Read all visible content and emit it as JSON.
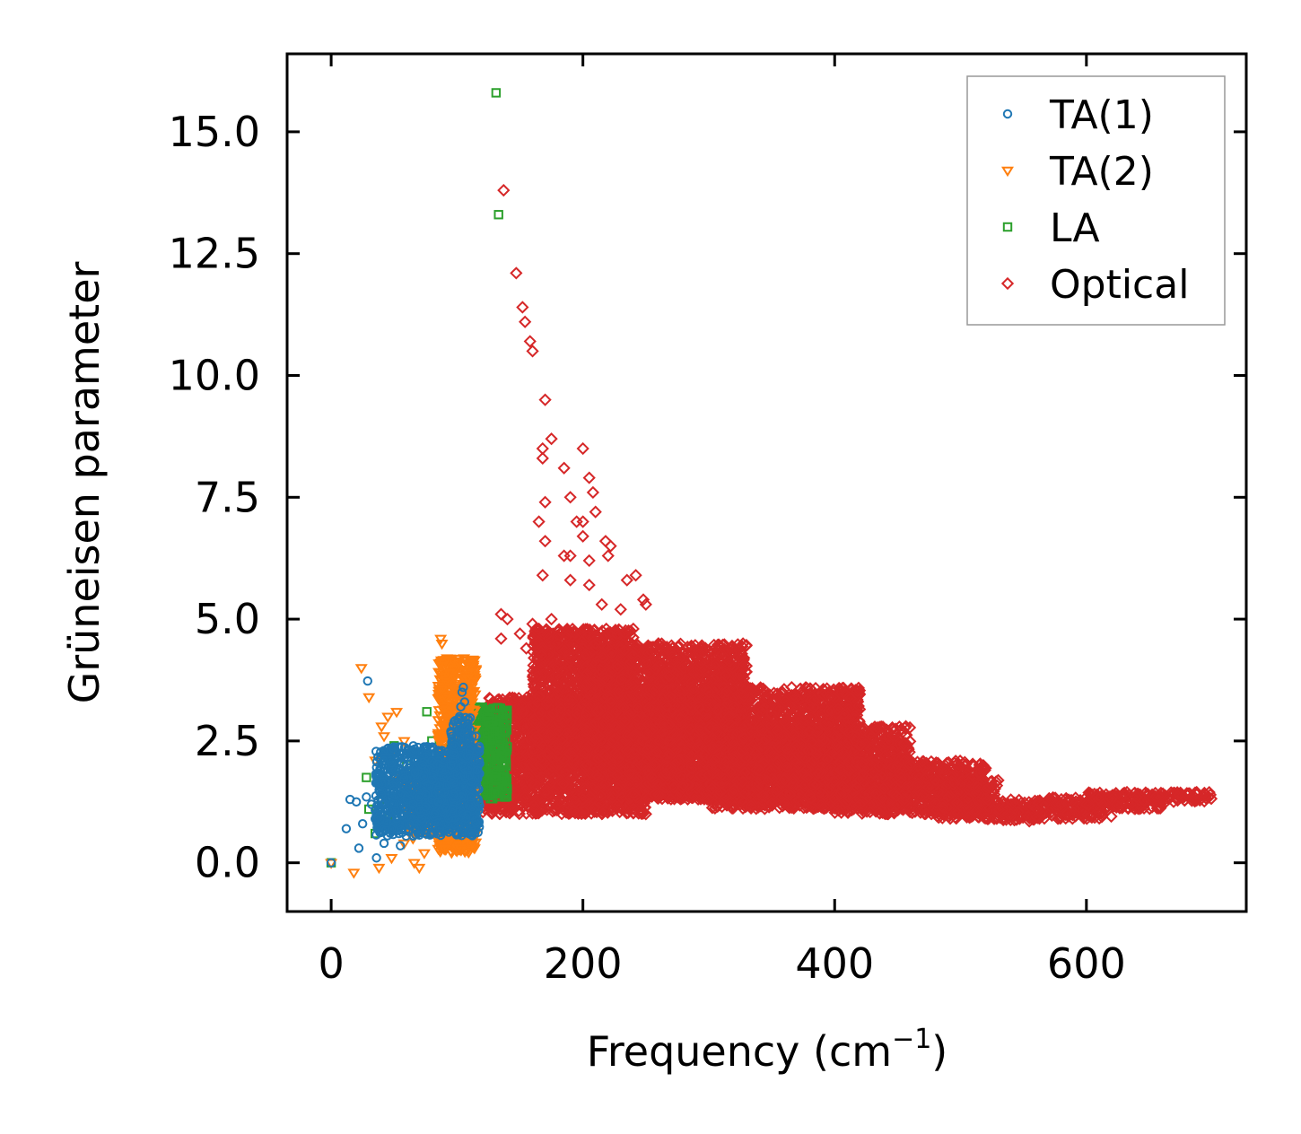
{
  "chart_data": {
    "type": "scatter",
    "title": "",
    "xlabel": "Frequency (cm",
    "xlabel_sup": "−1",
    "xlabel_close": ")",
    "ylabel": "Grüneisen parameter",
    "xlim": [
      -35,
      727
    ],
    "ylim": [
      -1.0,
      16.6
    ],
    "xticks": [
      0,
      200,
      400,
      600
    ],
    "xtick_labels": [
      "0",
      "200",
      "400",
      "600"
    ],
    "yticks": [
      0.0,
      2.5,
      5.0,
      7.5,
      10.0,
      12.5,
      15.0
    ],
    "ytick_labels": [
      "0.0",
      "2.5",
      "5.0",
      "7.5",
      "10.0",
      "12.5",
      "15.0"
    ],
    "grid": false,
    "legend_position": "top-right",
    "series": [
      {
        "name": "TA(1)",
        "marker": "circle",
        "color": "#1f77b4",
        "points": [
          [
            0,
            0.0
          ],
          [
            12,
            0.7
          ],
          [
            15,
            1.3
          ],
          [
            20,
            1.25
          ],
          [
            22,
            0.3
          ],
          [
            25,
            0.8
          ],
          [
            28,
            1.35
          ],
          [
            29,
            3.73
          ],
          [
            32,
            1.2
          ],
          [
            35,
            0.9
          ],
          [
            36,
            0.1
          ],
          [
            40,
            1.4
          ],
          [
            42,
            0.4
          ],
          [
            45,
            1.1
          ],
          [
            48,
            0.7
          ],
          [
            50,
            1.5
          ],
          [
            52,
            0.9
          ],
          [
            55,
            0.35
          ],
          [
            58,
            1.0
          ],
          [
            60,
            1.3
          ],
          [
            62,
            0.8
          ],
          [
            65,
            0.55
          ],
          [
            68,
            1.6
          ],
          [
            70,
            1.1
          ],
          [
            72,
            0.9
          ],
          [
            75,
            1.4
          ],
          [
            78,
            1.2
          ],
          [
            80,
            1.7
          ],
          [
            82,
            1.0
          ],
          [
            85,
            1.5
          ],
          [
            88,
            1.3
          ],
          [
            90,
            1.9
          ],
          [
            92,
            1.6
          ],
          [
            95,
            2.0
          ],
          [
            97,
            1.4
          ],
          [
            98,
            2.4
          ],
          [
            100,
            2.8
          ],
          [
            102,
            3.0
          ],
          [
            103,
            3.2
          ],
          [
            104,
            3.5
          ],
          [
            105,
            3.6
          ],
          [
            106,
            3.3
          ],
          [
            108,
            2.2
          ],
          [
            110,
            1.8
          ],
          [
            112,
            2.6
          ],
          [
            114,
            2.1
          ],
          [
            116,
            1.9
          ],
          [
            50,
            1.2
          ],
          [
            55,
            1.4
          ],
          [
            60,
            1.1
          ],
          [
            65,
            1.2
          ],
          [
            70,
            1.35
          ],
          [
            75,
            1.15
          ],
          [
            80,
            1.3
          ],
          [
            85,
            1.25
          ],
          [
            90,
            1.45
          ],
          [
            95,
            1.7
          ],
          [
            100,
            1.8
          ],
          [
            105,
            2.0
          ],
          [
            110,
            2.3
          ],
          [
            115,
            2.6
          ]
        ],
        "dense_regions": [
          [
            35,
            118,
            0.55,
            2.4
          ],
          [
            70,
            115,
            0.9,
            2.1
          ],
          [
            95,
            112,
            1.3,
            3.0
          ]
        ]
      },
      {
        "name": "TA(2)",
        "marker": "triangle-down",
        "color": "#ff7f0e",
        "points": [
          [
            0,
            0.0
          ],
          [
            18,
            -0.2
          ],
          [
            24,
            4.0
          ],
          [
            30,
            3.4
          ],
          [
            35,
            2.1
          ],
          [
            40,
            2.8
          ],
          [
            42,
            2.6
          ],
          [
            45,
            3.0
          ],
          [
            48,
            2.2
          ],
          [
            50,
            1.8
          ],
          [
            52,
            3.1
          ],
          [
            55,
            1.6
          ],
          [
            58,
            2.5
          ],
          [
            60,
            1.4
          ],
          [
            62,
            1.9
          ],
          [
            65,
            0.5
          ],
          [
            68,
            1.2
          ],
          [
            70,
            -0.1
          ],
          [
            72,
            1.0
          ],
          [
            75,
            1.7
          ],
          [
            78,
            0.6
          ],
          [
            80,
            0.9
          ],
          [
            82,
            2.0
          ],
          [
            85,
            1.1
          ],
          [
            87,
            4.6
          ],
          [
            88,
            4.5
          ],
          [
            90,
            0.3
          ],
          [
            92,
            4.2
          ],
          [
            94,
            3.9
          ],
          [
            96,
            3.6
          ],
          [
            98,
            3.8
          ],
          [
            100,
            3.0
          ],
          [
            102,
            2.6
          ],
          [
            104,
            2.3
          ],
          [
            106,
            2.8
          ],
          [
            108,
            2.0
          ],
          [
            110,
            1.8
          ],
          [
            112,
            2.4
          ],
          [
            114,
            2.2
          ],
          [
            38,
            -0.1
          ],
          [
            48,
            0.1
          ],
          [
            58,
            0.4
          ],
          [
            66,
            0.0
          ],
          [
            74,
            0.2
          ],
          [
            84,
            0.5
          ],
          [
            94,
            0.7
          ]
        ],
        "dense_regions": [
          [
            85,
            115,
            0.2,
            4.2
          ],
          [
            60,
            100,
            0.6,
            1.8
          ]
        ]
      },
      {
        "name": "LA",
        "marker": "square",
        "color": "#2ca02c",
        "points": [
          [
            0,
            0.0
          ],
          [
            28,
            1.75
          ],
          [
            30,
            1.1
          ],
          [
            35,
            0.6
          ],
          [
            40,
            1.3
          ],
          [
            45,
            0.9
          ],
          [
            50,
            2.4
          ],
          [
            55,
            1.5
          ],
          [
            60,
            2.0
          ],
          [
            65,
            1.2
          ],
          [
            70,
            1.8
          ],
          [
            75,
            2.1
          ],
          [
            76,
            3.1
          ],
          [
            80,
            2.5
          ],
          [
            85,
            2.2
          ],
          [
            90,
            2.0
          ],
          [
            95,
            2.4
          ],
          [
            100,
            2.6
          ],
          [
            105,
            2.9
          ],
          [
            110,
            3.0
          ],
          [
            115,
            2.7
          ],
          [
            118,
            3.0
          ],
          [
            120,
            2.8
          ],
          [
            122,
            3.1
          ],
          [
            125,
            2.9
          ],
          [
            128,
            2.6
          ],
          [
            130,
            2.7
          ],
          [
            131,
            15.8
          ],
          [
            133,
            13.3
          ],
          [
            110,
            1.4
          ],
          [
            112,
            1.6
          ],
          [
            115,
            1.3
          ],
          [
            118,
            1.5
          ]
        ],
        "dense_regions": [
          [
            108,
            140,
            1.3,
            3.2
          ],
          [
            115,
            128,
            2.5,
            3.0
          ]
        ]
      },
      {
        "name": "Optical",
        "marker": "diamond",
        "color": "#d62728",
        "points": [
          [
            137,
            13.8
          ],
          [
            147,
            12.1
          ],
          [
            152,
            11.4
          ],
          [
            154,
            11.1
          ],
          [
            158,
            10.7
          ],
          [
            160,
            10.5
          ],
          [
            170,
            9.5
          ],
          [
            175,
            8.7
          ],
          [
            168,
            8.5
          ],
          [
            168,
            8.3
          ],
          [
            200,
            8.5
          ],
          [
            205,
            7.9
          ],
          [
            208,
            7.6
          ],
          [
            185,
            8.1
          ],
          [
            190,
            7.5
          ],
          [
            200,
            7.0
          ],
          [
            210,
            7.2
          ],
          [
            170,
            7.4
          ],
          [
            165,
            7.0
          ],
          [
            170,
            6.6
          ],
          [
            185,
            6.3
          ],
          [
            190,
            6.3
          ],
          [
            195,
            7.0
          ],
          [
            200,
            6.7
          ],
          [
            205,
            6.2
          ],
          [
            218,
            6.6
          ],
          [
            220,
            6.3
          ],
          [
            222,
            6.5
          ],
          [
            235,
            5.8
          ],
          [
            242,
            5.9
          ],
          [
            248,
            5.4
          ],
          [
            250,
            5.3
          ],
          [
            168,
            5.9
          ],
          [
            190,
            5.8
          ],
          [
            205,
            5.7
          ],
          [
            215,
            5.3
          ],
          [
            135,
            5.1
          ],
          [
            140,
            5.0
          ],
          [
            135,
            4.6
          ],
          [
            150,
            4.7
          ],
          [
            160,
            4.9
          ],
          [
            155,
            4.4
          ],
          [
            165,
            4.8
          ],
          [
            175,
            5.0
          ],
          [
            180,
            4.5
          ],
          [
            200,
            4.4
          ],
          [
            210,
            4.5
          ],
          [
            230,
            5.2
          ],
          [
            240,
            4.8
          ],
          [
            260,
            4.5
          ],
          [
            270,
            4.3
          ],
          [
            280,
            4.0
          ],
          [
            300,
            3.5
          ],
          [
            320,
            3.2
          ],
          [
            340,
            3.0
          ],
          [
            360,
            2.9
          ],
          [
            380,
            2.7
          ],
          [
            400,
            2.6
          ],
          [
            420,
            2.4
          ],
          [
            440,
            2.2
          ],
          [
            460,
            2.0
          ],
          [
            480,
            1.7
          ],
          [
            500,
            1.6
          ],
          [
            520,
            1.5
          ],
          [
            530,
            1.2
          ],
          [
            540,
            1.0
          ],
          [
            560,
            1.1
          ],
          [
            580,
            1.2
          ],
          [
            600,
            1.2
          ],
          [
            620,
            1.3
          ],
          [
            640,
            1.35
          ],
          [
            660,
            1.4
          ],
          [
            680,
            1.4
          ],
          [
            695,
            1.38
          ],
          [
            220,
            3.0
          ],
          [
            240,
            2.6
          ],
          [
            250,
            1.0
          ],
          [
            260,
            1.4
          ],
          [
            280,
            1.6
          ],
          [
            300,
            1.8
          ],
          [
            320,
            1.5
          ],
          [
            340,
            1.9
          ],
          [
            360,
            1.7
          ],
          [
            380,
            1.4
          ],
          [
            400,
            1.3
          ],
          [
            420,
            1.2
          ],
          [
            200,
            1.3
          ],
          [
            180,
            1.2
          ],
          [
            160,
            1.4
          ],
          [
            140,
            1.2
          ]
        ],
        "dense_regions": [
          [
            120,
            250,
            1.0,
            3.4
          ],
          [
            160,
            240,
            2.0,
            4.8
          ],
          [
            200,
            330,
            1.3,
            4.5
          ],
          [
            250,
            420,
            1.3,
            3.6
          ],
          [
            300,
            460,
            1.1,
            2.8
          ],
          [
            400,
            520,
            1.0,
            2.1
          ],
          [
            480,
            530,
            0.9,
            1.7
          ],
          [
            530,
            560,
            0.85,
            1.3
          ],
          [
            560,
            620,
            0.9,
            1.35
          ],
          [
            600,
            660,
            1.1,
            1.45
          ],
          [
            640,
            700,
            1.25,
            1.45
          ]
        ]
      }
    ]
  }
}
